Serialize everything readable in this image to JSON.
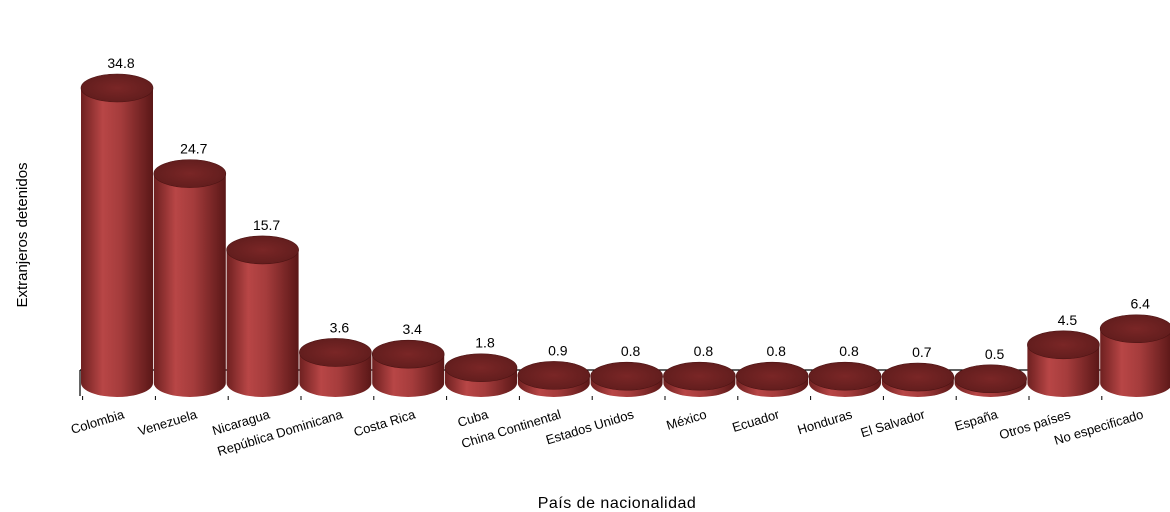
{
  "chart_data": {
    "type": "bar",
    "style": "3d-cylinder",
    "categories": [
      "Colombia",
      "Venezuela",
      "Nicaragua",
      "República Dominicana",
      "Costa Rica",
      "Cuba",
      "China Continental",
      "Estados Unidos",
      "México",
      "Ecuador",
      "Honduras",
      "El Salvador",
      "España",
      "Otros países",
      "No especificado"
    ],
    "values": [
      34.8,
      24.7,
      15.7,
      3.6,
      3.4,
      1.8,
      0.9,
      0.8,
      0.8,
      0.8,
      0.8,
      0.7,
      0.5,
      4.5,
      6.4
    ],
    "data_labels": [
      "34.8",
      "24.7",
      "15.7",
      "3.6",
      "3.4",
      "1.8",
      "0.9",
      "0.8",
      "0.8",
      "0.8",
      "0.8",
      "0.7",
      "0.5",
      "4.5",
      "6.4"
    ],
    "xlabel": "País de nacionalidad",
    "ylabel": "Extranjeros detenidos",
    "ylim": [
      0,
      34.8
    ],
    "grid": false,
    "legend": "none",
    "colors": {
      "bar": "#9b3535",
      "bar_light": "#b84a4a",
      "bar_dark": "#5e1a1a",
      "top": "#6b2222",
      "floor_line": "#000000"
    }
  }
}
